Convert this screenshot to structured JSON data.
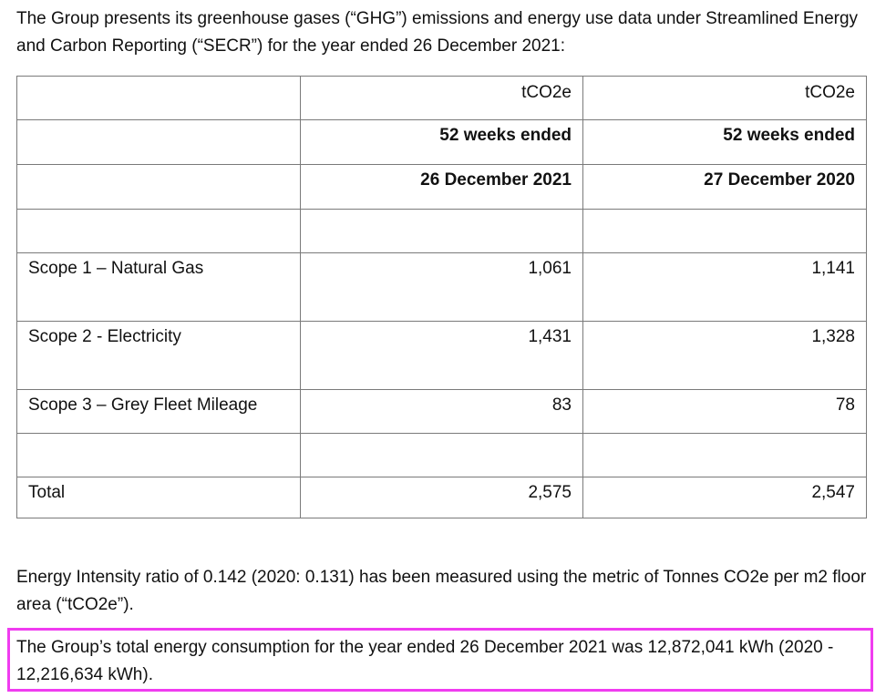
{
  "intro_text": "The Group presents its greenhouse gases (“GHG”) emissions and energy use data under Streamlined Energy and Carbon Reporting (“SECR”) for the year ended 26 December 2021:",
  "table": {
    "header_row_1": [
      "",
      "tCO2e",
      "tCO2e"
    ],
    "header_row_2": [
      "",
      "52 weeks ended",
      "52 weeks ended"
    ],
    "header_row_3": [
      "",
      "26 December 2021",
      "27 December 2020"
    ],
    "rows": [
      {
        "label": "Scope 1 – Natural Gas",
        "v2021": "1,061",
        "v2020": "1,141"
      },
      {
        "label": "Scope 2 - Electricity",
        "v2021": "1,431",
        "v2020": "1,328"
      },
      {
        "label": "Scope 3 – Grey Fleet Mileage",
        "v2021": "83",
        "v2020": "78"
      }
    ],
    "total": {
      "label": "Total",
      "v2021": "2,575",
      "v2020": "2,547"
    }
  },
  "intensity_text": "Energy Intensity ratio of 0.142 (2020: 0.131) has been measured using the metric of Tonnes CO2e per m2 floor area (“tCO2e”).",
  "consumption_text": "The Group’s total energy consumption for the year ended 26 December 2021 was 12,872,041 kWh (2020 - 12,216,634 kWh).",
  "colors": {
    "highlight_border": "#f03cf0",
    "table_border": "#7a7a7a",
    "text": "#111111"
  }
}
